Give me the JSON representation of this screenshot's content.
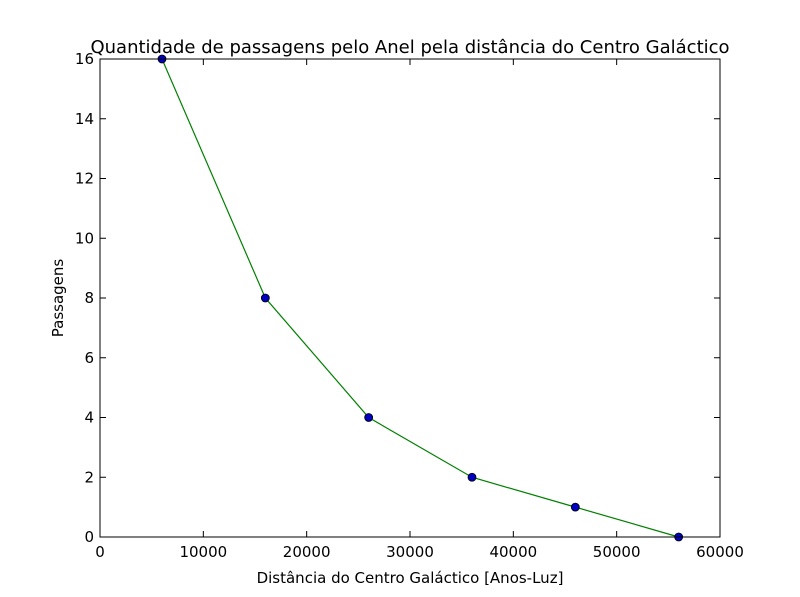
{
  "chart_data": {
    "type": "line",
    "title": "Quantidade de passagens pelo Anel pela distância do Centro Galáctico",
    "xlabel": "Distância do Centro Galáctico [Anos-Luz]",
    "ylabel": "Passagens",
    "xlim": [
      0,
      60000
    ],
    "ylim": [
      0,
      16
    ],
    "xticks": [
      "0",
      "10000",
      "20000",
      "30000",
      "40000",
      "50000",
      "60000"
    ],
    "yticks": [
      "0",
      "2",
      "4",
      "6",
      "8",
      "10",
      "12",
      "14",
      "16"
    ],
    "grid": false,
    "series": [
      {
        "x": [
          6000,
          16000,
          26000,
          36000,
          46000,
          56000
        ],
        "values": [
          16,
          8,
          4,
          2,
          1,
          0
        ],
        "line_color": "#008000",
        "marker_color": "#0000bf"
      }
    ]
  }
}
